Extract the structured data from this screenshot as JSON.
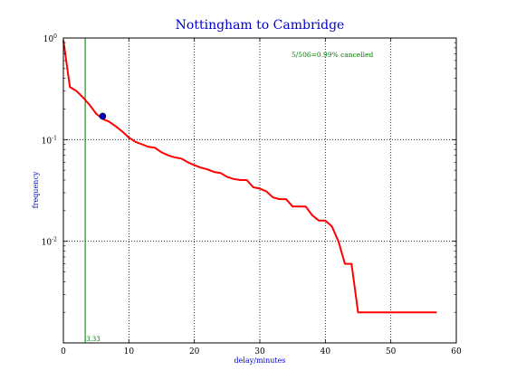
{
  "chart_data": {
    "type": "line",
    "title": "Nottingham to Cambridge",
    "xlabel": "delay/minutes",
    "ylabel": "frequency",
    "xlim": [
      0,
      60
    ],
    "ylim": [
      0.001,
      1
    ],
    "yscale": "log",
    "grid": true,
    "x_ticks": [
      0,
      10,
      20,
      30,
      40,
      50,
      60
    ],
    "x_tick_labels": [
      "0",
      "10",
      "20",
      "30",
      "40",
      "50",
      "60"
    ],
    "y_ticks": [
      0.001,
      0.01,
      0.1,
      1
    ],
    "y_tick_bases": [
      "",
      "10",
      "10",
      "10"
    ],
    "y_tick_exponents": [
      "",
      "-2",
      "-1",
      "0"
    ],
    "series": [
      {
        "color": "#ff0000",
        "points": [
          [
            0,
            0.95
          ],
          [
            1,
            0.33
          ],
          [
            2,
            0.3
          ],
          [
            3,
            0.26
          ],
          [
            4,
            0.22
          ],
          [
            5,
            0.18
          ],
          [
            6,
            0.16
          ],
          [
            7,
            0.15
          ],
          [
            8,
            0.135
          ],
          [
            9,
            0.12
          ],
          [
            10,
            0.105
          ],
          [
            11,
            0.095
          ],
          [
            12,
            0.09
          ],
          [
            13,
            0.085
          ],
          [
            14,
            0.083
          ],
          [
            15,
            0.075
          ],
          [
            16,
            0.07
          ],
          [
            17,
            0.067
          ],
          [
            18,
            0.065
          ],
          [
            19,
            0.06
          ],
          [
            20,
            0.056
          ],
          [
            21,
            0.053
          ],
          [
            22,
            0.051
          ],
          [
            23,
            0.048
          ],
          [
            24,
            0.047
          ],
          [
            25,
            0.043
          ],
          [
            26,
            0.041
          ],
          [
            27,
            0.04
          ],
          [
            28,
            0.04
          ],
          [
            29,
            0.034
          ],
          [
            30,
            0.033
          ],
          [
            31,
            0.031
          ],
          [
            32,
            0.027
          ],
          [
            33,
            0.026
          ],
          [
            34,
            0.026
          ],
          [
            35,
            0.022
          ],
          [
            36,
            0.022
          ],
          [
            37,
            0.022
          ],
          [
            38,
            0.018
          ],
          [
            39,
            0.016
          ],
          [
            40,
            0.016
          ],
          [
            41,
            0.014
          ],
          [
            42,
            0.01
          ],
          [
            43,
            0.006
          ],
          [
            44,
            0.006
          ],
          [
            45,
            0.002
          ],
          [
            57,
            0.002
          ]
        ]
      }
    ],
    "mean_line": {
      "x": 3.33,
      "label": "3.33",
      "color": "#007700"
    },
    "marker_point": {
      "x": 6,
      "y": 0.17,
      "color": "#0000cc"
    },
    "annotation": {
      "text": "5/506=0.99% cancelled",
      "color": "#007700"
    },
    "title_color": "#0000cc",
    "label_color": "#0000cc"
  }
}
